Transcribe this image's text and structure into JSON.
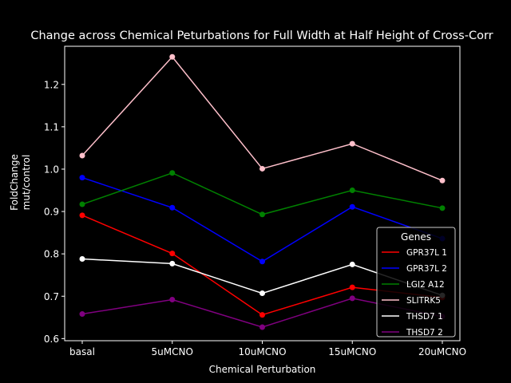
{
  "chart_data": {
    "type": "line",
    "title": "Change across Chemical Peturbations for Full Width at Half Height of Cross-Corr",
    "xlabel": "Chemical Perturbation",
    "ylabel": "FoldChange\nmut/control",
    "categories": [
      "basal",
      "5uMCNO",
      "10uMCNO",
      "15uMCNO",
      "20uMCNO"
    ],
    "ylim": [
      0.595,
      1.29
    ],
    "yticks": [
      0.6,
      0.7,
      0.8,
      0.9,
      1.0,
      1.1,
      1.2
    ],
    "ytick_labels": [
      "0.6",
      "0.7",
      "0.8",
      "0.9",
      "1.0",
      "1.1",
      "1.2"
    ],
    "grid": false,
    "legend": {
      "title": "Genes",
      "position": "lower-right"
    },
    "series": [
      {
        "name": "GPR37L 1",
        "color": "#ff0000",
        "values": [
          0.891,
          0.801,
          0.656,
          0.721,
          0.697
        ]
      },
      {
        "name": "GPR37L 2",
        "color": "#0000ff",
        "values": [
          0.98,
          0.909,
          0.782,
          0.911,
          0.836
        ]
      },
      {
        "name": "LGI2 A12",
        "color": "#008000",
        "values": [
          0.917,
          0.991,
          0.893,
          0.95,
          0.908
        ]
      },
      {
        "name": "SLITRK5",
        "color": "#ffc0cb",
        "values": [
          1.032,
          1.265,
          1.001,
          1.06,
          0.973
        ]
      },
      {
        "name": "THSD7 1",
        "color": "#ffffff",
        "values": [
          0.788,
          0.777,
          0.707,
          0.775,
          0.702
        ]
      },
      {
        "name": "THSD7 2",
        "color": "#800080",
        "values": [
          0.658,
          0.692,
          0.627,
          0.695,
          0.652
        ]
      }
    ]
  }
}
